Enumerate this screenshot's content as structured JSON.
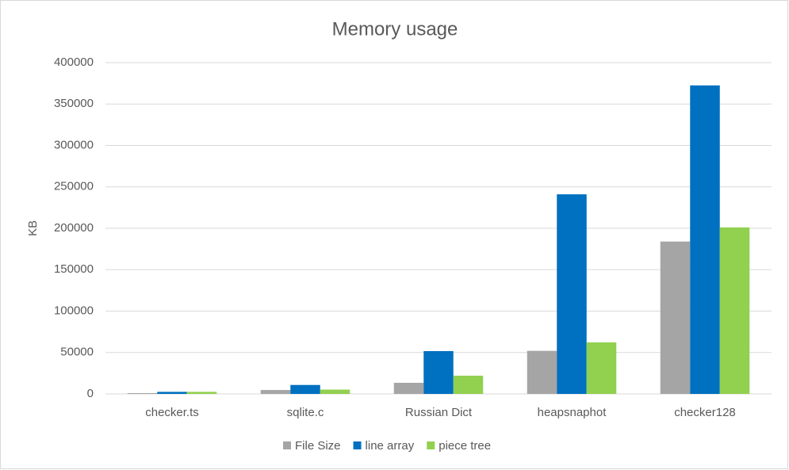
{
  "chart_data": {
    "type": "bar",
    "title": "Memory usage",
    "y_label": "KB",
    "categories": [
      "checker.ts",
      "sqlite.c",
      "Russian Dict",
      "heapsnaphot",
      "checker128"
    ],
    "series": [
      {
        "name": "File Size",
        "color": "#a5a5a5",
        "values": [
          1000,
          4700,
          13400,
          52000,
          184000
        ]
      },
      {
        "name": "line array",
        "color": "#0070c0",
        "values": [
          2500,
          10800,
          51700,
          241000,
          372500
        ]
      },
      {
        "name": "piece tree",
        "color": "#92d050",
        "values": [
          2500,
          5200,
          22000,
          62200,
          201000
        ]
      }
    ],
    "ylim": [
      0,
      400000
    ],
    "yticks": [
      0,
      50000,
      100000,
      150000,
      200000,
      250000,
      300000,
      350000,
      400000
    ],
    "grid": true,
    "legend": "bottom"
  }
}
